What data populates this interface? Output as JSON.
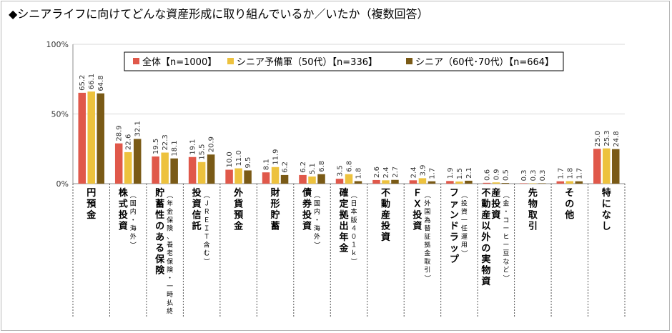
{
  "title": "◆シニアライフに向けてどんな資産形成に取り組んでいるか／いたか（複数回答）",
  "colors": {
    "series": [
      "#e0584a",
      "#edc23e",
      "#7a5a16"
    ],
    "grid": "#d9d9d9",
    "axis": "#8c8c8c"
  },
  "chart_data": {
    "type": "bar",
    "ylim": [
      0,
      100
    ],
    "yticks": [
      "0%",
      "50%",
      "100%"
    ],
    "grid": true,
    "legend_position": "top",
    "categories": [
      {
        "name": "円預金",
        "sub": ""
      },
      {
        "name": "株式投資",
        "sub": "（国内・海外）"
      },
      {
        "name": "貯蓄性のある保険",
        "sub": "（年金保険、養老保険・一時払終身保険など）"
      },
      {
        "name": "投資信託",
        "sub": "（ＪＲＥＩＴ含む）"
      },
      {
        "name": "外貨預金",
        "sub": ""
      },
      {
        "name": "財形貯蓄",
        "sub": ""
      },
      {
        "name": "債券投資",
        "sub": "（国内・海外）"
      },
      {
        "name": "確定拠出年金",
        "sub": "（日本版４０１ｋ）"
      },
      {
        "name": "不動産投資",
        "sub": ""
      },
      {
        "name": "ＦＸ投資",
        "sub": "（外国為替証拠金取引）"
      },
      {
        "name": "ファンドラップ",
        "sub": "（投資一任運用）"
      },
      {
        "name": "不動産以外の実物資産投資",
        "sub": "（金・コーヒー豆など）"
      },
      {
        "name": "先物取引",
        "sub": ""
      },
      {
        "name": "その他",
        "sub": ""
      },
      {
        "name": "特になし",
        "sub": ""
      }
    ],
    "series": [
      {
        "name": "全体【n=1000】",
        "values": [
          65.2,
          28.9,
          19.5,
          19.1,
          10.0,
          8.1,
          6.2,
          3.5,
          2.6,
          2.4,
          1.9,
          0.6,
          0.3,
          1.7,
          25.0
        ]
      },
      {
        "name": "シニア予備軍（50代）【n=336】",
        "values": [
          66.1,
          22.6,
          22.3,
          15.5,
          11.0,
          11.9,
          5.1,
          6.8,
          2.4,
          3.9,
          1.5,
          0.9,
          0.3,
          1.8,
          25.3
        ]
      },
      {
        "name": "シニア（60代･70代）【n=664】",
        "values": [
          64.8,
          32.1,
          18.1,
          20.9,
          9.5,
          6.2,
          6.8,
          1.8,
          2.7,
          1.7,
          2.1,
          0.5,
          0.3,
          1.7,
          24.8
        ]
      }
    ]
  }
}
